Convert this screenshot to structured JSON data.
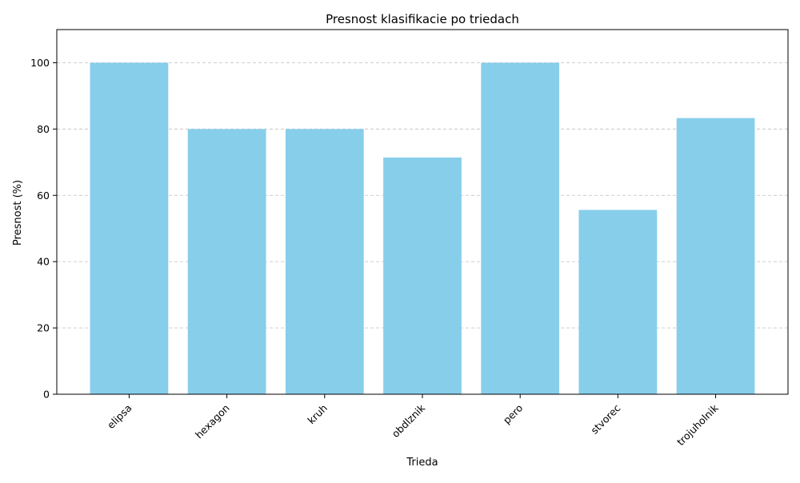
{
  "chart_data": {
    "type": "bar",
    "title": "Presnost klasifikacie po triedach",
    "xlabel": "Trieda",
    "ylabel": "Presnost (%)",
    "categories": [
      "elipsa",
      "hexagon",
      "kruh",
      "obdlznik",
      "pero",
      "stvorec",
      "trojuholnik"
    ],
    "values": [
      100,
      80,
      80,
      71.4,
      100,
      55.6,
      83.3
    ],
    "ylim": [
      0,
      110
    ],
    "yticks": [
      0,
      20,
      40,
      60,
      80,
      100
    ],
    "grid": "y-dashed",
    "legend": "none",
    "colors": {
      "bar": "#87ceeb",
      "grid": "#c8c8c8",
      "axis": "#000000"
    }
  }
}
